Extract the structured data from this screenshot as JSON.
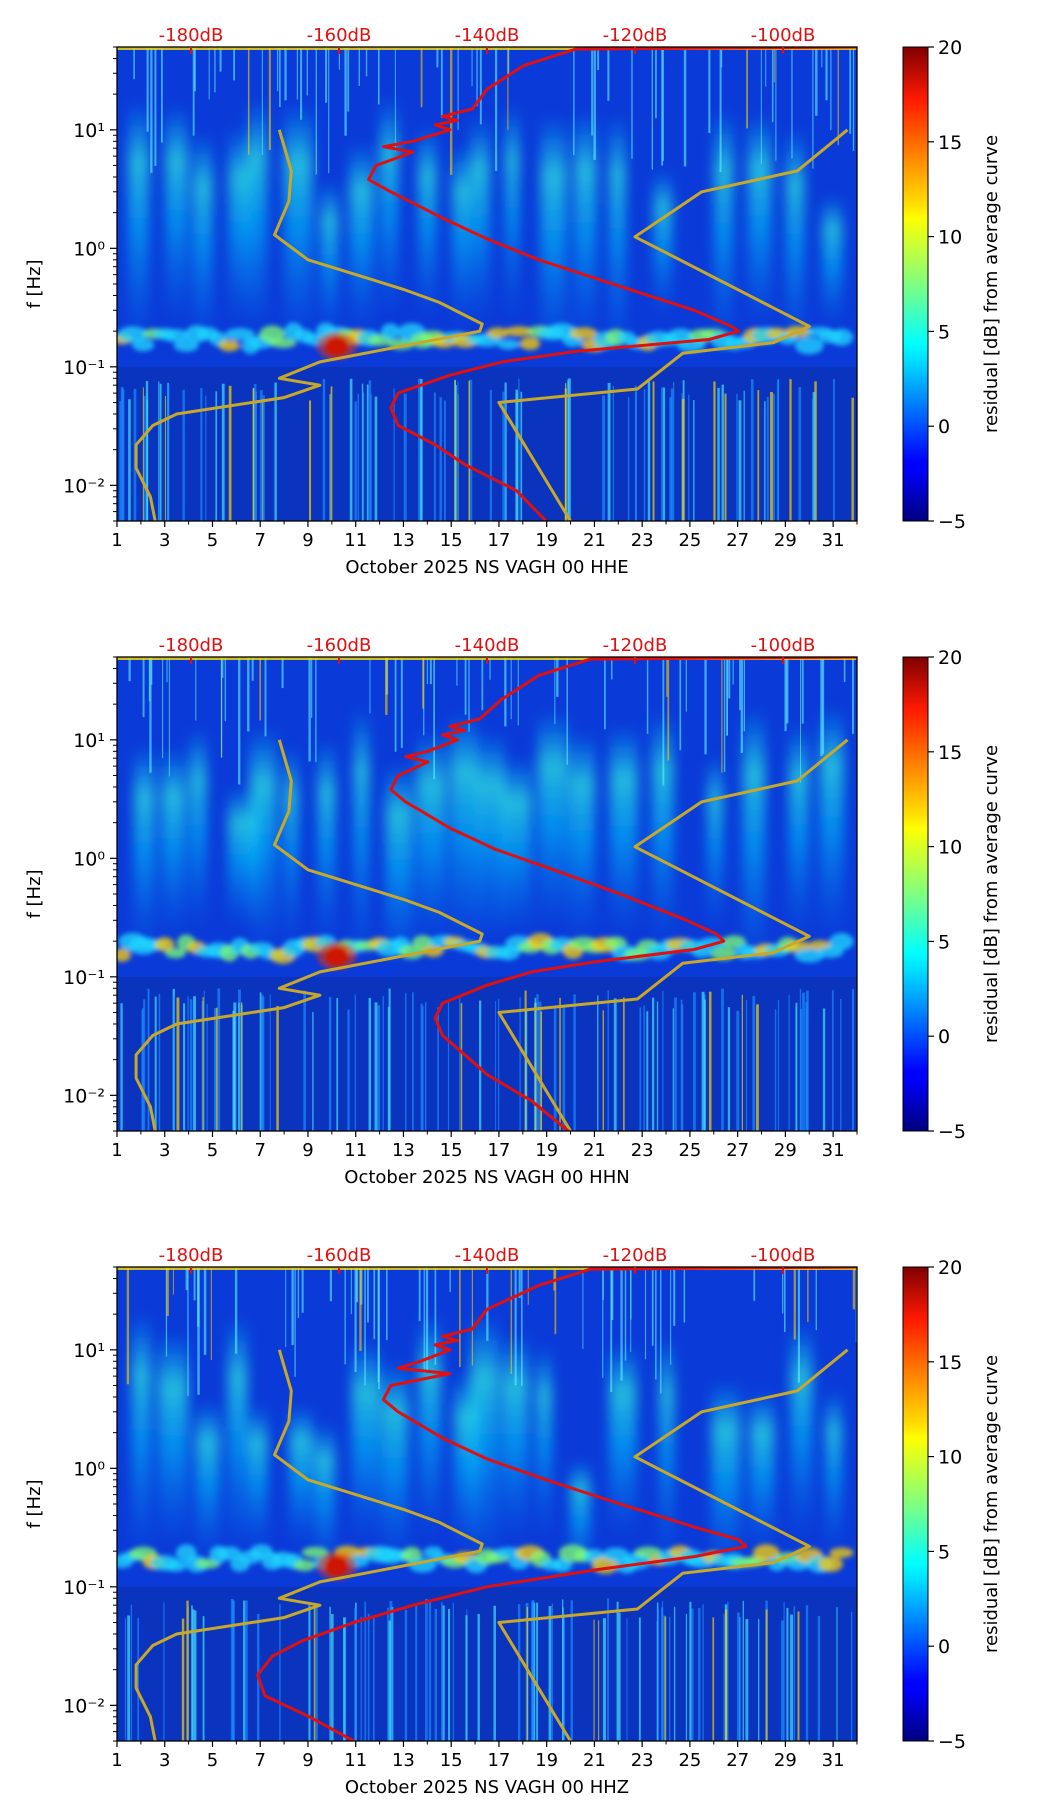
{
  "figure": {
    "colorbar_label": "residual [dB] from average curve",
    "colorbar_ticks": [
      "−5",
      "0",
      "5",
      "10",
      "15",
      "20"
    ],
    "ylabel": "f [Hz]",
    "y_ticks": [
      "10⁻²",
      "10⁻¹",
      "10⁰",
      "10¹"
    ],
    "x_ticks": [
      "1",
      "3",
      "5",
      "7",
      "9",
      "11",
      "13",
      "15",
      "17",
      "19",
      "21",
      "23",
      "25",
      "27",
      "29",
      "31"
    ],
    "top_ticks": [
      "-180dB",
      "-160dB",
      "-140dB",
      "-120dB",
      "-100dB"
    ],
    "colors": {
      "reference_curve": "#c8a82a",
      "median_curve": "#e01010",
      "top_axis_text": "#e01010"
    }
  },
  "chart_data": [
    {
      "type": "heatmap",
      "xlabel": "October 2025 NS VAGH 00 HHE",
      "ylabel": "f [Hz]",
      "xlim": [
        1,
        32
      ],
      "ylim": [
        0.005,
        50
      ],
      "y_scale": "log",
      "colorbar": {
        "label": "residual [dB] from average curve",
        "range": [
          -5,
          20
        ]
      },
      "top_axis": {
        "ticks": [
          "-180dB",
          "-160dB",
          "-140dB",
          "-120dB",
          "-100dB"
        ],
        "range_db": [
          -190,
          -90
        ]
      },
      "overlay_curves": [
        {
          "color": "#c8a82a",
          "points": [
            [
              2.6,
              0.005
            ],
            [
              2.4,
              0.008
            ],
            [
              1.8,
              0.014
            ],
            [
              1.8,
              0.022
            ],
            [
              2.5,
              0.032
            ],
            [
              3.5,
              0.04
            ],
            [
              8.0,
              0.055
            ],
            [
              9.5,
              0.07
            ],
            [
              7.8,
              0.08
            ],
            [
              9.5,
              0.11
            ],
            [
              16.2,
              0.2
            ],
            [
              16.3,
              0.23
            ],
            [
              14.5,
              0.35
            ],
            [
              13.0,
              0.45
            ],
            [
              9.0,
              0.8
            ],
            [
              7.6,
              1.3
            ],
            [
              8.2,
              2.5
            ],
            [
              8.3,
              4.5
            ],
            [
              7.8,
              10.0
            ]
          ]
        },
        {
          "color": "#c8a82a",
          "points": [
            [
              20.0,
              0.005
            ],
            [
              17.0,
              0.05
            ],
            [
              22.8,
              0.065
            ],
            [
              24.7,
              0.13
            ],
            [
              28.5,
              0.16
            ],
            [
              30.0,
              0.22
            ],
            [
              22.7,
              1.25
            ],
            [
              25.5,
              3.0
            ],
            [
              29.5,
              4.5
            ],
            [
              31.6,
              10.0
            ]
          ]
        },
        {
          "color": "#e01010",
          "points": [
            [
              -132,
              0.005
            ],
            [
              -136,
              0.009
            ],
            [
              -143,
              0.015
            ],
            [
              -147,
              0.022
            ],
            [
              -152,
              0.032
            ],
            [
              -153,
              0.045
            ],
            [
              -152,
              0.06
            ],
            [
              -145,
              0.085
            ],
            [
              -138,
              0.11
            ],
            [
              -128,
              0.135
            ],
            [
              -110,
              0.17
            ],
            [
              -106,
              0.2
            ],
            [
              -107,
              0.22
            ],
            [
              -112,
              0.3
            ],
            [
              -123,
              0.5
            ],
            [
              -133,
              0.8
            ],
            [
              -140,
              1.2
            ],
            [
              -146,
              1.8
            ],
            [
              -153,
              3.0
            ],
            [
              -156,
              3.8
            ],
            [
              -155,
              5.0
            ],
            [
              -150,
              6.5
            ],
            [
              -154,
              7.2
            ],
            [
              -150,
              8.0
            ],
            [
              -145,
              10.0
            ],
            [
              -147,
              11.0
            ],
            [
              -144,
              12.0
            ],
            [
              -146,
              13.0
            ],
            [
              -142,
              15.0
            ],
            [
              -140,
              22.0
            ],
            [
              -135,
              35.0
            ],
            [
              -128,
              48.0
            ],
            [
              -90,
              50.0
            ]
          ]
        }
      ]
    },
    {
      "type": "heatmap",
      "xlabel": "October 2025 NS VAGH 00 HHN",
      "ylabel": "f [Hz]",
      "xlim": [
        1,
        32
      ],
      "ylim": [
        0.005,
        50
      ],
      "y_scale": "log",
      "colorbar": {
        "label": "residual [dB] from average curve",
        "range": [
          -5,
          20
        ]
      },
      "top_axis": {
        "ticks": [
          "-180dB",
          "-160dB",
          "-140dB",
          "-120dB",
          "-100dB"
        ],
        "range_db": [
          -190,
          -90
        ]
      },
      "overlay_curves": [
        {
          "color": "#c8a82a",
          "points": [
            [
              2.6,
              0.005
            ],
            [
              2.4,
              0.008
            ],
            [
              1.8,
              0.014
            ],
            [
              1.8,
              0.022
            ],
            [
              2.5,
              0.032
            ],
            [
              3.5,
              0.04
            ],
            [
              8.0,
              0.055
            ],
            [
              9.5,
              0.07
            ],
            [
              7.8,
              0.08
            ],
            [
              9.5,
              0.11
            ],
            [
              16.2,
              0.2
            ],
            [
              16.3,
              0.23
            ],
            [
              14.5,
              0.35
            ],
            [
              13.0,
              0.45
            ],
            [
              9.0,
              0.8
            ],
            [
              7.6,
              1.3
            ],
            [
              8.2,
              2.5
            ],
            [
              8.3,
              4.5
            ],
            [
              7.8,
              10.0
            ]
          ]
        },
        {
          "color": "#c8a82a",
          "points": [
            [
              20.0,
              0.005
            ],
            [
              17.0,
              0.05
            ],
            [
              22.8,
              0.065
            ],
            [
              24.7,
              0.13
            ],
            [
              28.5,
              0.16
            ],
            [
              30.0,
              0.22
            ],
            [
              22.7,
              1.25
            ],
            [
              25.5,
              3.0
            ],
            [
              29.5,
              4.5
            ],
            [
              31.6,
              10.0
            ]
          ]
        },
        {
          "color": "#e01010",
          "points": [
            [
              -129,
              0.005
            ],
            [
              -134,
              0.009
            ],
            [
              -140,
              0.015
            ],
            [
              -143,
              0.022
            ],
            [
              -146,
              0.032
            ],
            [
              -147,
              0.045
            ],
            [
              -146,
              0.06
            ],
            [
              -140,
              0.085
            ],
            [
              -134,
              0.11
            ],
            [
              -125,
              0.135
            ],
            [
              -112,
              0.17
            ],
            [
              -108,
              0.2
            ],
            [
              -109,
              0.23
            ],
            [
              -113,
              0.3
            ],
            [
              -122,
              0.5
            ],
            [
              -131,
              0.8
            ],
            [
              -139,
              1.2
            ],
            [
              -145,
              1.8
            ],
            [
              -151,
              3.0
            ],
            [
              -153,
              3.8
            ],
            [
              -152,
              5.0
            ],
            [
              -148,
              6.5
            ],
            [
              -151,
              7.2
            ],
            [
              -148,
              8.0
            ],
            [
              -144,
              10.0
            ],
            [
              -146,
              11.0
            ],
            [
              -143,
              12.0
            ],
            [
              -145,
              13.0
            ],
            [
              -141,
              15.0
            ],
            [
              -138,
              22.0
            ],
            [
              -133,
              35.0
            ],
            [
              -126,
              48.0
            ],
            [
              -90,
              50.0
            ]
          ]
        }
      ]
    },
    {
      "type": "heatmap",
      "xlabel": "October 2025 NS VAGH 00 HHZ",
      "ylabel": "f [Hz]",
      "xlim": [
        1,
        32
      ],
      "ylim": [
        0.005,
        50
      ],
      "y_scale": "log",
      "colorbar": {
        "label": "residual [dB] from average curve",
        "range": [
          -5,
          20
        ]
      },
      "top_axis": {
        "ticks": [
          "-180dB",
          "-160dB",
          "-140dB",
          "-120dB",
          "-100dB"
        ],
        "range_db": [
          -190,
          -90
        ]
      },
      "overlay_curves": [
        {
          "color": "#c8a82a",
          "points": [
            [
              2.6,
              0.005
            ],
            [
              2.4,
              0.008
            ],
            [
              1.8,
              0.014
            ],
            [
              1.8,
              0.022
            ],
            [
              2.5,
              0.032
            ],
            [
              3.5,
              0.04
            ],
            [
              8.0,
              0.055
            ],
            [
              9.5,
              0.07
            ],
            [
              7.8,
              0.08
            ],
            [
              9.5,
              0.11
            ],
            [
              16.2,
              0.2
            ],
            [
              16.3,
              0.23
            ],
            [
              14.5,
              0.35
            ],
            [
              13.0,
              0.45
            ],
            [
              9.0,
              0.8
            ],
            [
              7.6,
              1.3
            ],
            [
              8.2,
              2.5
            ],
            [
              8.3,
              4.5
            ],
            [
              7.8,
              10.0
            ]
          ]
        },
        {
          "color": "#c8a82a",
          "points": [
            [
              20.0,
              0.005
            ],
            [
              17.0,
              0.05
            ],
            [
              22.8,
              0.065
            ],
            [
              24.7,
              0.13
            ],
            [
              28.5,
              0.16
            ],
            [
              30.0,
              0.22
            ],
            [
              22.7,
              1.25
            ],
            [
              25.5,
              3.0
            ],
            [
              29.5,
              4.5
            ],
            [
              31.6,
              10.0
            ]
          ]
        },
        {
          "color": "#e01010",
          "points": [
            [
              -158,
              0.005
            ],
            [
              -164,
              0.008
            ],
            [
              -170,
              0.012
            ],
            [
              -171,
              0.018
            ],
            [
              -169,
              0.026
            ],
            [
              -165,
              0.035
            ],
            [
              -158,
              0.05
            ],
            [
              -150,
              0.07
            ],
            [
              -140,
              0.1
            ],
            [
              -125,
              0.14
            ],
            [
              -112,
              0.18
            ],
            [
              -105,
              0.22
            ],
            [
              -106,
              0.25
            ],
            [
              -112,
              0.32
            ],
            [
              -122,
              0.5
            ],
            [
              -132,
              0.8
            ],
            [
              -140,
              1.2
            ],
            [
              -146,
              1.8
            ],
            [
              -152,
              3.0
            ],
            [
              -154,
              3.8
            ],
            [
              -153,
              5.0
            ],
            [
              -145,
              6.3
            ],
            [
              -152,
              7.0
            ],
            [
              -149,
              8.0
            ],
            [
              -145,
              10.0
            ],
            [
              -147,
              11.0
            ],
            [
              -144,
              12.0
            ],
            [
              -146,
              13.0
            ],
            [
              -142,
              15.0
            ],
            [
              -140,
              22.0
            ],
            [
              -133,
              35.0
            ],
            [
              -126,
              48.0
            ],
            [
              -90,
              50.0
            ]
          ]
        }
      ]
    }
  ]
}
